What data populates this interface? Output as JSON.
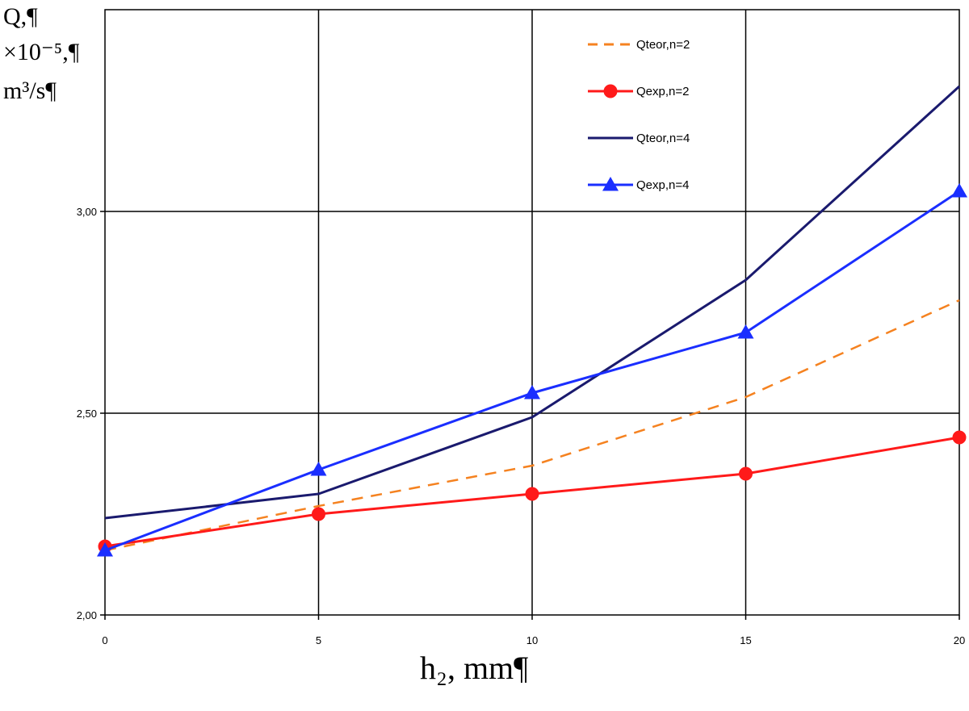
{
  "chart_data": {
    "type": "line",
    "ylabel_lines": [
      "Q,¶",
      "×10⁻⁵,¶",
      "m³/s¶"
    ],
    "xlabel": "h₂, mm¶",
    "x": [
      0,
      5,
      10,
      15,
      20
    ],
    "x_ticks": [
      "0",
      "5",
      "10",
      "15",
      "20"
    ],
    "y_ticks": [
      "2,00",
      "2,50",
      "3,00"
    ],
    "xlim": [
      0,
      20
    ],
    "ylim": [
      2.0,
      3.5
    ],
    "grid": true,
    "legend_position": "top-right",
    "series": [
      {
        "name": "Qteor,n=2",
        "values": [
          2.16,
          2.27,
          2.37,
          2.54,
          2.78
        ],
        "color": "#f58220",
        "style": "dashed",
        "marker": "none"
      },
      {
        "name": "Qexp,n=2",
        "values": [
          2.17,
          2.25,
          2.3,
          2.35,
          2.44
        ],
        "color": "#ff1a1a",
        "style": "solid",
        "marker": "circle"
      },
      {
        "name": "Qteor,n=4",
        "values": [
          2.24,
          2.3,
          2.49,
          2.83,
          3.31
        ],
        "color": "#1a1a6e",
        "style": "solid",
        "marker": "none"
      },
      {
        "name": "Qexp,n=4",
        "values": [
          2.16,
          2.36,
          2.55,
          2.7,
          3.05
        ],
        "color": "#1a2eff",
        "style": "solid",
        "marker": "triangle"
      }
    ]
  }
}
